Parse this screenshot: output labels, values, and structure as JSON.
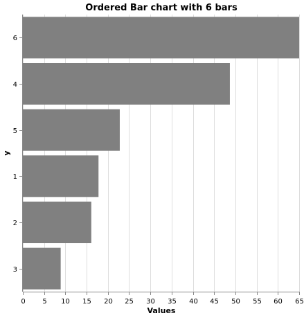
{
  "chart_data": {
    "type": "bar",
    "orientation": "horizontal",
    "title": "Ordered Bar chart with 6 bars",
    "xlabel": "Values",
    "ylabel": "y",
    "categories": [
      "6",
      "4",
      "5",
      "1",
      "2",
      "3"
    ],
    "values": [
      65,
      48.7,
      22.8,
      17.8,
      16.1,
      8.9
    ],
    "xlim": [
      0,
      65
    ],
    "xticks": [
      0,
      5,
      10,
      15,
      20,
      25,
      30,
      35,
      40,
      45,
      50,
      55,
      60,
      65
    ],
    "grid": true,
    "bar_color": "#808080"
  }
}
